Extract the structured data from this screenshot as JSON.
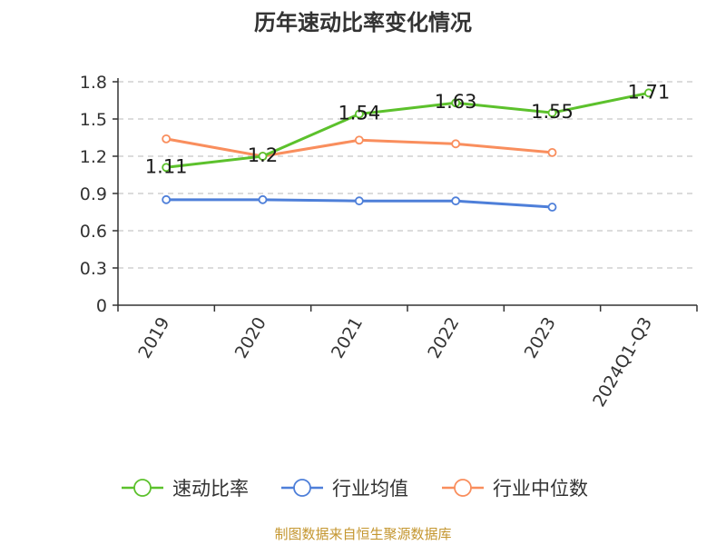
{
  "chart_data": {
    "type": "line",
    "title": "历年速动比率变化情况",
    "categories": [
      "2019",
      "2020",
      "2021",
      "2022",
      "2023",
      "2024Q1-Q3"
    ],
    "yticks": [
      "0",
      "0.3",
      "0.6",
      "0.9",
      "1.2",
      "1.5",
      "1.8"
    ],
    "ylim": [
      0,
      1.8
    ],
    "grid": true,
    "legend_position": "bottom",
    "series": [
      {
        "name": "速动比率",
        "color": "#5cc12c",
        "values": [
          1.11,
          1.2,
          1.54,
          1.63,
          1.55,
          1.71
        ],
        "labels": [
          "1.11",
          "1.2",
          "1.54",
          "1.63",
          "1.55",
          "1.71"
        ]
      },
      {
        "name": "行业均值",
        "color": "#4e7fd9",
        "values": [
          0.85,
          0.85,
          0.84,
          0.84,
          0.79,
          null
        ]
      },
      {
        "name": "行业中位数",
        "color": "#f98e5d",
        "values": [
          1.34,
          1.2,
          1.33,
          1.3,
          1.23,
          null
        ]
      }
    ]
  },
  "footer": {
    "source": "制图数据来自恒生聚源数据库"
  },
  "colors": {
    "source_text": "#c4962f",
    "grid": "#c8c8c8",
    "axis": "#333333"
  }
}
